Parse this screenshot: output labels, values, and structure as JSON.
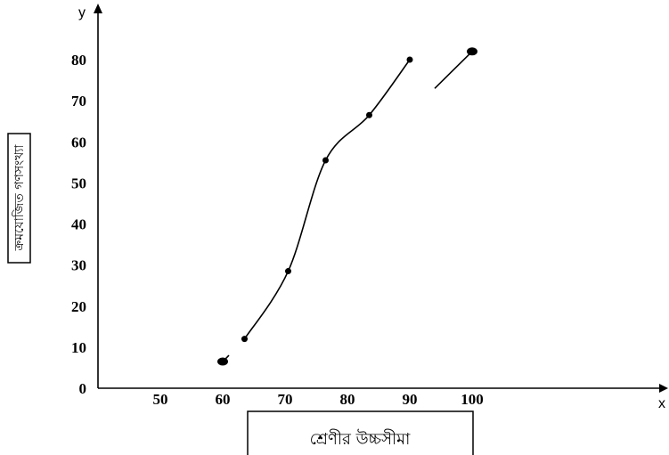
{
  "chart_data": {
    "type": "line",
    "title": "",
    "xlabel": "শ্রেণীর উচ্চসীমা",
    "ylabel": "ক্রমযোজিত গণসংখ্যা",
    "x_axis_letter": "x",
    "y_axis_letter": "y",
    "x_ticks": [
      "50",
      "60",
      "70",
      "80",
      "90",
      "100"
    ],
    "y_ticks": [
      "0",
      "10",
      "20",
      "30",
      "40",
      "50",
      "60",
      "70",
      "80"
    ],
    "xlim": [
      40,
      104
    ],
    "ylim": [
      0,
      84
    ],
    "grid": false,
    "series": [
      {
        "values_segments": [
          {
            "x": [
              60,
              61
            ],
            "y": [
              6.5,
              8
            ]
          },
          {
            "x": [
              63.5,
              70.5,
              76.5,
              83.5,
              90
            ],
            "y": [
              12,
              28.5,
              55.5,
              66.5,
              80
            ]
          },
          {
            "x": [
              94,
              100
            ],
            "y": [
              73,
              82
            ]
          }
        ],
        "points": {
          "x": [
            60,
            63.5,
            70.5,
            76.5,
            83.5,
            90,
            100
          ],
          "y": [
            6.5,
            12,
            28.5,
            55.5,
            66.5,
            80,
            82
          ]
        }
      }
    ]
  }
}
